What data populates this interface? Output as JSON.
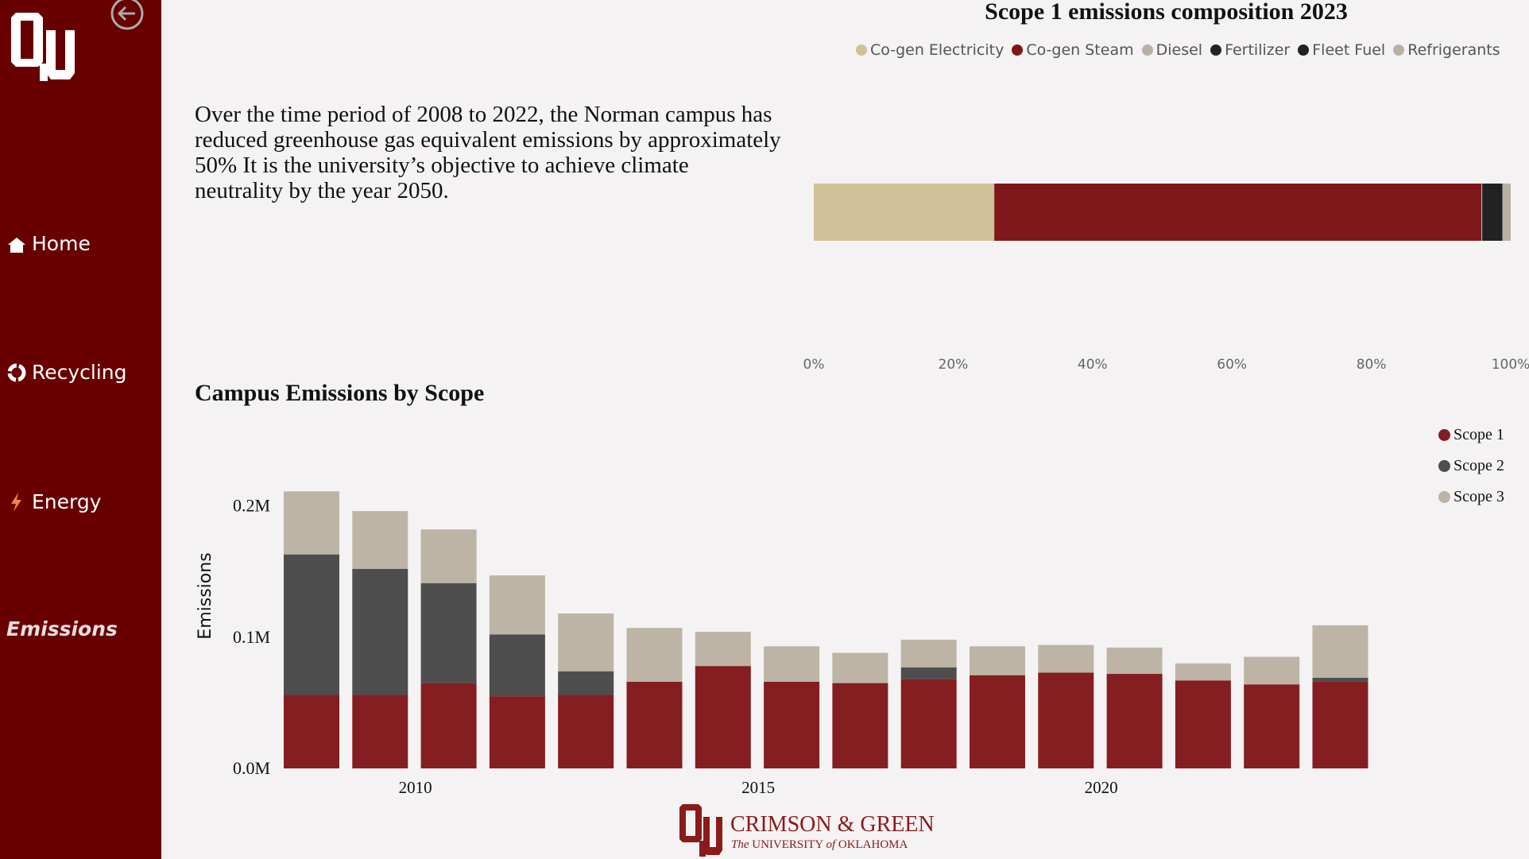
{
  "nav": {
    "home": "Home",
    "recycling": "Recycling",
    "energy": "Energy",
    "emissions": "Emissions"
  },
  "intro_text": "Over the time period of 2008 to 2022, the Norman campus has reduced greenhouse gas equivalent emissions by approximately 50% It is the university’s objective to achieve climate neutrality by the year 2050.",
  "footer": {
    "brand": "CRIMSON & GREEN",
    "sub_prefix": "The",
    "sub_mid": "UNIVERSITY",
    "sub_of": "of",
    "sub_end": "OKLAHOMA"
  },
  "colors": {
    "crimson": "#7f181b",
    "sidebar": "#680000",
    "cogen_electricity": "#d1c199",
    "diesel": "#b8b0a2",
    "dark": "#222222",
    "scope1": "#851e21",
    "scope2": "#4e4e4e",
    "scope3": "#bdb4a6"
  },
  "icons": [
    "back-arrow-icon",
    "home-icon",
    "recycle-icon",
    "lightning-icon",
    "ou-logo"
  ],
  "chart_data": [
    {
      "type": "bar",
      "orientation": "horizontal-stacked-100",
      "title": "Scope 1 emissions composition 2023",
      "categories": [
        "2023"
      ],
      "series": [
        {
          "name": "Co-gen Electricity",
          "color": "#d1c199",
          "values": [
            25.9
          ]
        },
        {
          "name": "Co-gen Steam",
          "color": "#7f181b",
          "values": [
            69.9
          ]
        },
        {
          "name": "Diesel",
          "color": "#b8b0a2",
          "values": [
            0.1
          ]
        },
        {
          "name": "Fertilizer",
          "color": "#222222",
          "values": [
            0.1
          ]
        },
        {
          "name": "Fleet Fuel",
          "color": "#222222",
          "values": [
            2.8
          ]
        },
        {
          "name": "Refrigerants",
          "color": "#b8b0a2",
          "values": [
            1.2
          ]
        }
      ],
      "xticks": [
        "0%",
        "20%",
        "40%",
        "60%",
        "80%",
        "100%"
      ],
      "xlim": [
        0,
        100
      ],
      "legend": "top"
    },
    {
      "type": "bar",
      "orientation": "vertical-stacked",
      "title": "Campus Emissions by Scope",
      "xlabel": "",
      "ylabel": "Emissions",
      "ylim": [
        0,
        0.21
      ],
      "yticks": [
        "0.0M",
        "0.1M",
        "0.2M"
      ],
      "ytick_values": [
        0,
        0.1,
        0.2
      ],
      "x": [
        2008,
        2009,
        2010,
        2011,
        2012,
        2013,
        2014,
        2015,
        2016,
        2017,
        2018,
        2019,
        2020,
        2021,
        2022,
        2023
      ],
      "xticks": [
        "2010",
        "2015",
        "2020"
      ],
      "xtick_values": [
        2010,
        2015,
        2020
      ],
      "unit": "M",
      "series": [
        {
          "name": "Scope 1",
          "color": "#851e21",
          "values": [
            0.056,
            0.056,
            0.065,
            0.055,
            0.056,
            0.066,
            0.078,
            0.066,
            0.065,
            0.068,
            0.071,
            0.073,
            0.072,
            0.067,
            0.064,
            0.066
          ]
        },
        {
          "name": "Scope 2",
          "color": "#4e4e4e",
          "values": [
            0.107,
            0.096,
            0.076,
            0.047,
            0.018,
            0.0,
            0.0,
            0.0,
            0.0,
            0.009,
            0.0,
            0.0,
            0.0,
            0.0,
            0.0,
            0.003
          ]
        },
        {
          "name": "Scope 3",
          "color": "#bdb4a6",
          "values": [
            0.048,
            0.044,
            0.041,
            0.045,
            0.044,
            0.041,
            0.026,
            0.027,
            0.023,
            0.021,
            0.022,
            0.021,
            0.02,
            0.013,
            0.021,
            0.04
          ]
        }
      ],
      "legend": "top-right"
    }
  ]
}
